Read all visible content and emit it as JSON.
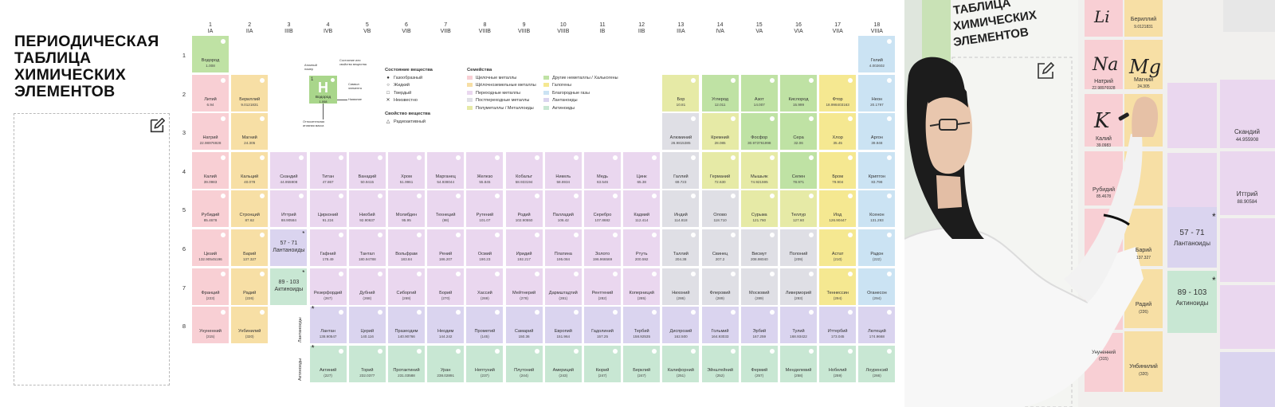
{
  "title_lines": [
    "ПЕРИОДИЧЕСКАЯ",
    "ТАБЛИЦА",
    "ХИМИЧЕСКИХ",
    "ЭЛЕМЕНТОВ"
  ],
  "groups": [
    {
      "n": "1",
      "r": "IA"
    },
    {
      "n": "2",
      "r": "IIA"
    },
    {
      "n": "3",
      "r": "IIIB"
    },
    {
      "n": "4",
      "r": "IVB"
    },
    {
      "n": "5",
      "r": "VB"
    },
    {
      "n": "6",
      "r": "VIB"
    },
    {
      "n": "7",
      "r": "VIIB"
    },
    {
      "n": "8",
      "r": "VIIIB"
    },
    {
      "n": "9",
      "r": "VIIIB"
    },
    {
      "n": "10",
      "r": "VIIIB"
    },
    {
      "n": "11",
      "r": "IB"
    },
    {
      "n": "12",
      "r": "IIB"
    },
    {
      "n": "13",
      "r": "IIIA"
    },
    {
      "n": "14",
      "r": "IVA"
    },
    {
      "n": "15",
      "r": "VA"
    },
    {
      "n": "16",
      "r": "VIA"
    },
    {
      "n": "17",
      "r": "VIIA"
    },
    {
      "n": "18",
      "r": "VIIIA"
    }
  ],
  "periods": [
    "1",
    "2",
    "3",
    "4",
    "5",
    "6",
    "7",
    "8"
  ],
  "colors": {
    "alkali": "#f8cfd4",
    "alkaline": "#f7dfa5",
    "transition": "#ead7ef",
    "post": "#dfdfe5",
    "metalloid": "#e6eaa6",
    "nonmetal": "#bfe2a4",
    "halogen": "#f5e891",
    "noble": "#cbe3f3",
    "lanth": "#dad4ef",
    "actin": "#c8e7d3",
    "unknown": "#e4e4e4"
  },
  "elements": [
    {
      "g": 1,
      "p": 1,
      "name": "Водород",
      "mass": "1.008",
      "c": "nonmetal"
    },
    {
      "g": 18,
      "p": 1,
      "name": "Гелий",
      "mass": "4.002602",
      "c": "noble"
    },
    {
      "g": 1,
      "p": 2,
      "name": "Литий",
      "mass": "6.94",
      "c": "alkali"
    },
    {
      "g": 2,
      "p": 2,
      "name": "Бериллий",
      "mass": "9.0121831",
      "c": "alkaline"
    },
    {
      "g": 13,
      "p": 2,
      "name": "Бор",
      "mass": "10.81",
      "c": "metalloid"
    },
    {
      "g": 14,
      "p": 2,
      "name": "Углерод",
      "mass": "12.011",
      "c": "nonmetal"
    },
    {
      "g": 15,
      "p": 2,
      "name": "Азот",
      "mass": "14.007",
      "c": "nonmetal"
    },
    {
      "g": 16,
      "p": 2,
      "name": "Кислород",
      "mass": "15.999",
      "c": "nonmetal"
    },
    {
      "g": 17,
      "p": 2,
      "name": "Фтор",
      "mass": "18.998403163",
      "c": "halogen"
    },
    {
      "g": 18,
      "p": 2,
      "name": "Неон",
      "mass": "20.1797",
      "c": "noble"
    },
    {
      "g": 1,
      "p": 3,
      "name": "Натрий",
      "mass": "22.98976928",
      "c": "alkali"
    },
    {
      "g": 2,
      "p": 3,
      "name": "Магний",
      "mass": "24.305",
      "c": "alkaline"
    },
    {
      "g": 13,
      "p": 3,
      "name": "Алюминий",
      "mass": "26.9815385",
      "c": "post"
    },
    {
      "g": 14,
      "p": 3,
      "name": "Кремний",
      "mass": "28.085",
      "c": "metalloid"
    },
    {
      "g": 15,
      "p": 3,
      "name": "Фосфор",
      "mass": "30.973761998",
      "c": "nonmetal"
    },
    {
      "g": 16,
      "p": 3,
      "name": "Сера",
      "mass": "32.06",
      "c": "nonmetal"
    },
    {
      "g": 17,
      "p": 3,
      "name": "Хлор",
      "mass": "35.45",
      "c": "halogen"
    },
    {
      "g": 18,
      "p": 3,
      "name": "Аргон",
      "mass": "39.948",
      "c": "noble"
    },
    {
      "g": 1,
      "p": 4,
      "name": "Калий",
      "mass": "39.0983",
      "c": "alkali"
    },
    {
      "g": 2,
      "p": 4,
      "name": "Кальций",
      "mass": "40.078",
      "c": "alkaline"
    },
    {
      "g": 3,
      "p": 4,
      "name": "Скандий",
      "mass": "44.955908",
      "c": "transition"
    },
    {
      "g": 4,
      "p": 4,
      "name": "Титан",
      "mass": "47.867",
      "c": "transition"
    },
    {
      "g": 5,
      "p": 4,
      "name": "Ванадий",
      "mass": "50.9415",
      "c": "transition"
    },
    {
      "g": 6,
      "p": 4,
      "name": "Хром",
      "mass": "51.9961",
      "c": "transition"
    },
    {
      "g": 7,
      "p": 4,
      "name": "Марганец",
      "mass": "54.938044",
      "c": "transition"
    },
    {
      "g": 8,
      "p": 4,
      "name": "Железо",
      "mass": "55.845",
      "c": "transition"
    },
    {
      "g": 9,
      "p": 4,
      "name": "Кобальт",
      "mass": "58.933194",
      "c": "transition"
    },
    {
      "g": 10,
      "p": 4,
      "name": "Никель",
      "mass": "58.6934",
      "c": "transition"
    },
    {
      "g": 11,
      "p": 4,
      "name": "Медь",
      "mass": "63.546",
      "c": "transition"
    },
    {
      "g": 12,
      "p": 4,
      "name": "Цинк",
      "mass": "65.38",
      "c": "transition"
    },
    {
      "g": 13,
      "p": 4,
      "name": "Галлий",
      "mass": "69.723",
      "c": "post"
    },
    {
      "g": 14,
      "p": 4,
      "name": "Германий",
      "mass": "72.630",
      "c": "metalloid"
    },
    {
      "g": 15,
      "p": 4,
      "name": "Мышьяк",
      "mass": "74.921595",
      "c": "metalloid"
    },
    {
      "g": 16,
      "p": 4,
      "name": "Селен",
      "mass": "78.971",
      "c": "nonmetal"
    },
    {
      "g": 17,
      "p": 4,
      "name": "Бром",
      "mass": "79.904",
      "c": "halogen"
    },
    {
      "g": 18,
      "p": 4,
      "name": "Криптон",
      "mass": "83.798",
      "c": "noble"
    },
    {
      "g": 1,
      "p": 5,
      "name": "Рубидий",
      "mass": "85.4678",
      "c": "alkali"
    },
    {
      "g": 2,
      "p": 5,
      "name": "Стронций",
      "mass": "87.62",
      "c": "alkaline"
    },
    {
      "g": 3,
      "p": 5,
      "name": "Иттрий",
      "mass": "88.90584",
      "c": "transition"
    },
    {
      "g": 4,
      "p": 5,
      "name": "Цирконий",
      "mass": "91.224",
      "c": "transition"
    },
    {
      "g": 5,
      "p": 5,
      "name": "Ниобий",
      "mass": "92.90637",
      "c": "transition"
    },
    {
      "g": 6,
      "p": 5,
      "name": "Молибден",
      "mass": "95.95",
      "c": "transition"
    },
    {
      "g": 7,
      "p": 5,
      "name": "Технеций",
      "mass": "(98)",
      "c": "transition"
    },
    {
      "g": 8,
      "p": 5,
      "name": "Рутений",
      "mass": "101.07",
      "c": "transition"
    },
    {
      "g": 9,
      "p": 5,
      "name": "Родий",
      "mass": "102.90550",
      "c": "transition"
    },
    {
      "g": 10,
      "p": 5,
      "name": "Палладий",
      "mass": "106.42",
      "c": "transition"
    },
    {
      "g": 11,
      "p": 5,
      "name": "Серебро",
      "mass": "107.8682",
      "c": "transition"
    },
    {
      "g": 12,
      "p": 5,
      "name": "Кадмий",
      "mass": "112.414",
      "c": "transition"
    },
    {
      "g": 13,
      "p": 5,
      "name": "Индий",
      "mass": "114.818",
      "c": "post"
    },
    {
      "g": 14,
      "p": 5,
      "name": "Олово",
      "mass": "118.710",
      "c": "post"
    },
    {
      "g": 15,
      "p": 5,
      "name": "Сурьма",
      "mass": "121.760",
      "c": "metalloid"
    },
    {
      "g": 16,
      "p": 5,
      "name": "Теллур",
      "mass": "127.60",
      "c": "metalloid"
    },
    {
      "g": 17,
      "p": 5,
      "name": "Иод",
      "mass": "126.90447",
      "c": "halogen"
    },
    {
      "g": 18,
      "p": 5,
      "name": "Ксенон",
      "mass": "131.293",
      "c": "noble"
    },
    {
      "g": 1,
      "p": 6,
      "name": "Цезий",
      "mass": "132.90545196",
      "c": "alkali"
    },
    {
      "g": 2,
      "p": 6,
      "name": "Барий",
      "mass": "137.327",
      "c": "alkaline"
    },
    {
      "g": 4,
      "p": 6,
      "name": "Гафний",
      "mass": "178.49",
      "c": "transition"
    },
    {
      "g": 5,
      "p": 6,
      "name": "Тантал",
      "mass": "180.94788",
      "c": "transition"
    },
    {
      "g": 6,
      "p": 6,
      "name": "Вольфрам",
      "mass": "183.84",
      "c": "transition"
    },
    {
      "g": 7,
      "p": 6,
      "name": "Рений",
      "mass": "186.207",
      "c": "transition"
    },
    {
      "g": 8,
      "p": 6,
      "name": "Осмий",
      "mass": "190.23",
      "c": "transition"
    },
    {
      "g": 9,
      "p": 6,
      "name": "Иридий",
      "mass": "192.217",
      "c": "transition"
    },
    {
      "g": 10,
      "p": 6,
      "name": "Платина",
      "mass": "195.084",
      "c": "transition"
    },
    {
      "g": 11,
      "p": 6,
      "name": "Золото",
      "mass": "196.966569",
      "c": "transition"
    },
    {
      "g": 12,
      "p": 6,
      "name": "Ртуть",
      "mass": "200.592",
      "c": "transition"
    },
    {
      "g": 13,
      "p": 6,
      "name": "Таллий",
      "mass": "204.38",
      "c": "post"
    },
    {
      "g": 14,
      "p": 6,
      "name": "Свинец",
      "mass": "207.2",
      "c": "post"
    },
    {
      "g": 15,
      "p": 6,
      "name": "Висмут",
      "mass": "208.98040",
      "c": "post"
    },
    {
      "g": 16,
      "p": 6,
      "name": "Полоний",
      "mass": "(209)",
      "c": "post"
    },
    {
      "g": 17,
      "p": 6,
      "name": "Астат",
      "mass": "(210)",
      "c": "halogen"
    },
    {
      "g": 18,
      "p": 6,
      "name": "Радон",
      "mass": "(222)",
      "c": "noble"
    },
    {
      "g": 1,
      "p": 7,
      "name": "Франций",
      "mass": "(223)",
      "c": "alkali"
    },
    {
      "g": 2,
      "p": 7,
      "name": "Радий",
      "mass": "(226)",
      "c": "alkaline"
    },
    {
      "g": 4,
      "p": 7,
      "name": "Резерфордий",
      "mass": "(267)",
      "c": "transition"
    },
    {
      "g": 5,
      "p": 7,
      "name": "Дубний",
      "mass": "(268)",
      "c": "transition"
    },
    {
      "g": 6,
      "p": 7,
      "name": "Сиборгий",
      "mass": "(269)",
      "c": "transition"
    },
    {
      "g": 7,
      "p": 7,
      "name": "Борий",
      "mass": "(270)",
      "c": "transition"
    },
    {
      "g": 8,
      "p": 7,
      "name": "Хассий",
      "mass": "(269)",
      "c": "transition"
    },
    {
      "g": 9,
      "p": 7,
      "name": "Мейтнерий",
      "mass": "(278)",
      "c": "transition"
    },
    {
      "g": 10,
      "p": 7,
      "name": "Дармштадтий",
      "mass": "(281)",
      "c": "transition"
    },
    {
      "g": 11,
      "p": 7,
      "name": "Рентгений",
      "mass": "(282)",
      "c": "transition"
    },
    {
      "g": 12,
      "p": 7,
      "name": "Коперниций",
      "mass": "(285)",
      "c": "transition"
    },
    {
      "g": 13,
      "p": 7,
      "name": "Нихоний",
      "mass": "(286)",
      "c": "post"
    },
    {
      "g": 14,
      "p": 7,
      "name": "Флеровий",
      "mass": "(289)",
      "c": "post"
    },
    {
      "g": 15,
      "p": 7,
      "name": "Московий",
      "mass": "(289)",
      "c": "post"
    },
    {
      "g": 16,
      "p": 7,
      "name": "Ливерморий",
      "mass": "(293)",
      "c": "post"
    },
    {
      "g": 17,
      "p": 7,
      "name": "Теннессин",
      "mass": "(294)",
      "c": "halogen"
    },
    {
      "g": 18,
      "p": 7,
      "name": "Оганесон",
      "mass": "(294)",
      "c": "noble"
    },
    {
      "g": 1,
      "p": 8,
      "name": "Унуненний",
      "mass": "(315)",
      "c": "alkali"
    },
    {
      "g": 2,
      "p": 8,
      "name": "Унбинилий",
      "mass": "(320)",
      "c": "alkaline"
    },
    {
      "g": 4,
      "p": 8,
      "name": "Лантан",
      "mass": "138.90547",
      "c": "lanth",
      "star": true
    },
    {
      "g": 5,
      "p": 8,
      "name": "Церий",
      "mass": "140.116",
      "c": "lanth"
    },
    {
      "g": 6,
      "p": 8,
      "name": "Празеодим",
      "mass": "140.90766",
      "c": "lanth"
    },
    {
      "g": 7,
      "p": 8,
      "name": "Неодим",
      "mass": "144.242",
      "c": "lanth"
    },
    {
      "g": 8,
      "p": 8,
      "name": "Прометий",
      "mass": "(145)",
      "c": "lanth"
    },
    {
      "g": 9,
      "p": 8,
      "name": "Самарий",
      "mass": "150.36",
      "c": "lanth"
    },
    {
      "g": 10,
      "p": 8,
      "name": "Европий",
      "mass": "151.964",
      "c": "lanth"
    },
    {
      "g": 11,
      "p": 8,
      "name": "Гадолиний",
      "mass": "157.25",
      "c": "lanth"
    },
    {
      "g": 12,
      "p": 8,
      "name": "Тербий",
      "mass": "158.92535",
      "c": "lanth"
    },
    {
      "g": 13,
      "p": 8,
      "name": "Диспрозий",
      "mass": "162.500",
      "c": "lanth"
    },
    {
      "g": 14,
      "p": 8,
      "name": "Гольмий",
      "mass": "164.93033",
      "c": "lanth"
    },
    {
      "g": 15,
      "p": 8,
      "name": "Эрбий",
      "mass": "167.259",
      "c": "lanth"
    },
    {
      "g": 16,
      "p": 8,
      "name": "Тулий",
      "mass": "168.93422",
      "c": "lanth"
    },
    {
      "g": 17,
      "p": 8,
      "name": "Иттербий",
      "mass": "173.045",
      "c": "lanth"
    },
    {
      "g": 18,
      "p": 8,
      "name": "Лютеций",
      "mass": "174.9668",
      "c": "lanth"
    },
    {
      "g": 4,
      "p": 9,
      "name": "Актиний",
      "mass": "(227)",
      "c": "actin",
      "star": true
    },
    {
      "g": 5,
      "p": 9,
      "name": "Торий",
      "mass": "232.0377",
      "c": "actin"
    },
    {
      "g": 6,
      "p": 9,
      "name": "Протактиний",
      "mass": "231.03588",
      "c": "actin"
    },
    {
      "g": 7,
      "p": 9,
      "name": "Уран",
      "mass": "238.02891",
      "c": "actin"
    },
    {
      "g": 8,
      "p": 9,
      "name": "Нептуний",
      "mass": "(237)",
      "c": "actin"
    },
    {
      "g": 9,
      "p": 9,
      "name": "Плутоний",
      "mass": "(244)",
      "c": "actin"
    },
    {
      "g": 10,
      "p": 9,
      "name": "Америций",
      "mass": "(243)",
      "c": "actin"
    },
    {
      "g": 11,
      "p": 9,
      "name": "Кюрий",
      "mass": "(247)",
      "c": "actin"
    },
    {
      "g": 12,
      "p": 9,
      "name": "Берклий",
      "mass": "(247)",
      "c": "actin"
    },
    {
      "g": 13,
      "p": 9,
      "name": "Калифорний",
      "mass": "(251)",
      "c": "actin"
    },
    {
      "g": 14,
      "p": 9,
      "name": "Эйнштейний",
      "mass": "(252)",
      "c": "actin"
    },
    {
      "g": 15,
      "p": 9,
      "name": "Фермий",
      "mass": "(257)",
      "c": "actin"
    },
    {
      "g": 16,
      "p": 9,
      "name": "Менделевий",
      "mass": "(258)",
      "c": "actin"
    },
    {
      "g": 17,
      "p": 9,
      "name": "Нобелий",
      "mass": "(259)",
      "c": "actin"
    },
    {
      "g": 18,
      "p": 9,
      "name": "Лоуренсий",
      "mass": "(266)",
      "c": "actin"
    }
  ],
  "placeholders": [
    {
      "g": 3,
      "p": 6,
      "label1": "57 - 71",
      "label2": "Лантаноиды",
      "c": "lanth"
    },
    {
      "g": 3,
      "p": 7,
      "label1": "89 - 103",
      "label2": "Актиноиды",
      "c": "actin"
    }
  ],
  "row_labels": {
    "lanth": "Лантаноиды",
    "actin": "Актиноиды"
  },
  "key": {
    "atomic_number_label": "Атомный номер",
    "state_label": "Состояние или свойство вещества",
    "symbol": "H",
    "number": "1",
    "name": "Водород",
    "mass": "1.008",
    "name_label": "Название",
    "symbol_label": "Символ элемента",
    "mass_label": "Относительная атомная масса"
  },
  "legend_state": {
    "title": "Состояние вещества",
    "items": [
      {
        "sym": "●",
        "text": "Газообразный"
      },
      {
        "sym": "○",
        "text": "Жидкий"
      },
      {
        "sym": "□",
        "text": "Твердый"
      },
      {
        "sym": "✕",
        "text": "Неизвестно"
      }
    ],
    "prop_title": "Свойство вещества",
    "prop_items": [
      {
        "sym": "△",
        "text": "Радиоактивный"
      }
    ]
  },
  "legend_families": {
    "title": "Семейства",
    "col1": [
      {
        "c": "alkali",
        "text": "Щелочные металлы"
      },
      {
        "c": "alkaline",
        "text": "Щёлочноземельные металлы"
      },
      {
        "c": "transition",
        "text": "Переходные металлы"
      },
      {
        "c": "post",
        "text": "Постпереходные металлы"
      },
      {
        "c": "metalloid",
        "text": "Полуметаллы / Металлоиды"
      }
    ],
    "col2": [
      {
        "c": "nonmetal",
        "text": "Другие неметаллы / Халькогены"
      },
      {
        "c": "halogen",
        "text": "Галогены"
      },
      {
        "c": "noble",
        "text": "Благородные газы"
      },
      {
        "c": "lanth",
        "text": "Лантаноиды"
      },
      {
        "c": "actin",
        "text": "Актиноиды"
      }
    ]
  },
  "photo": {
    "title_lines": [
      "ТАБЛИЦА",
      "ХИМИЧЕСКИХ",
      "ЭЛЕМЕНТОВ"
    ],
    "cells": [
      {
        "name": "Бериллий",
        "mass": "9.0121831"
      },
      {
        "name": "Натрий",
        "mass": "22.98976928"
      },
      {
        "name": "Магний",
        "mass": "24.305"
      },
      {
        "name": "Калий",
        "mass": "39.0983"
      },
      {
        "name": "Скандий",
        "mass": "44.955908"
      },
      {
        "name": "Рубидий",
        "mass": "85.4678"
      },
      {
        "name": "Иттрий",
        "mass": "88.90584"
      },
      {
        "name": "57 - 71",
        "mass": "Лантаноиды"
      },
      {
        "name": "Барий",
        "mass": "137.327"
      },
      {
        "name": "89 - 103",
        "mass": "Актиноиды"
      },
      {
        "name": "Радий",
        "mass": "(226)"
      },
      {
        "name": "Унбинилий",
        "mass": "(320)"
      },
      {
        "name": "Унуненний",
        "mass": "(315)"
      }
    ],
    "handwritten": [
      "Li",
      "Na",
      "Mg",
      "K"
    ]
  }
}
